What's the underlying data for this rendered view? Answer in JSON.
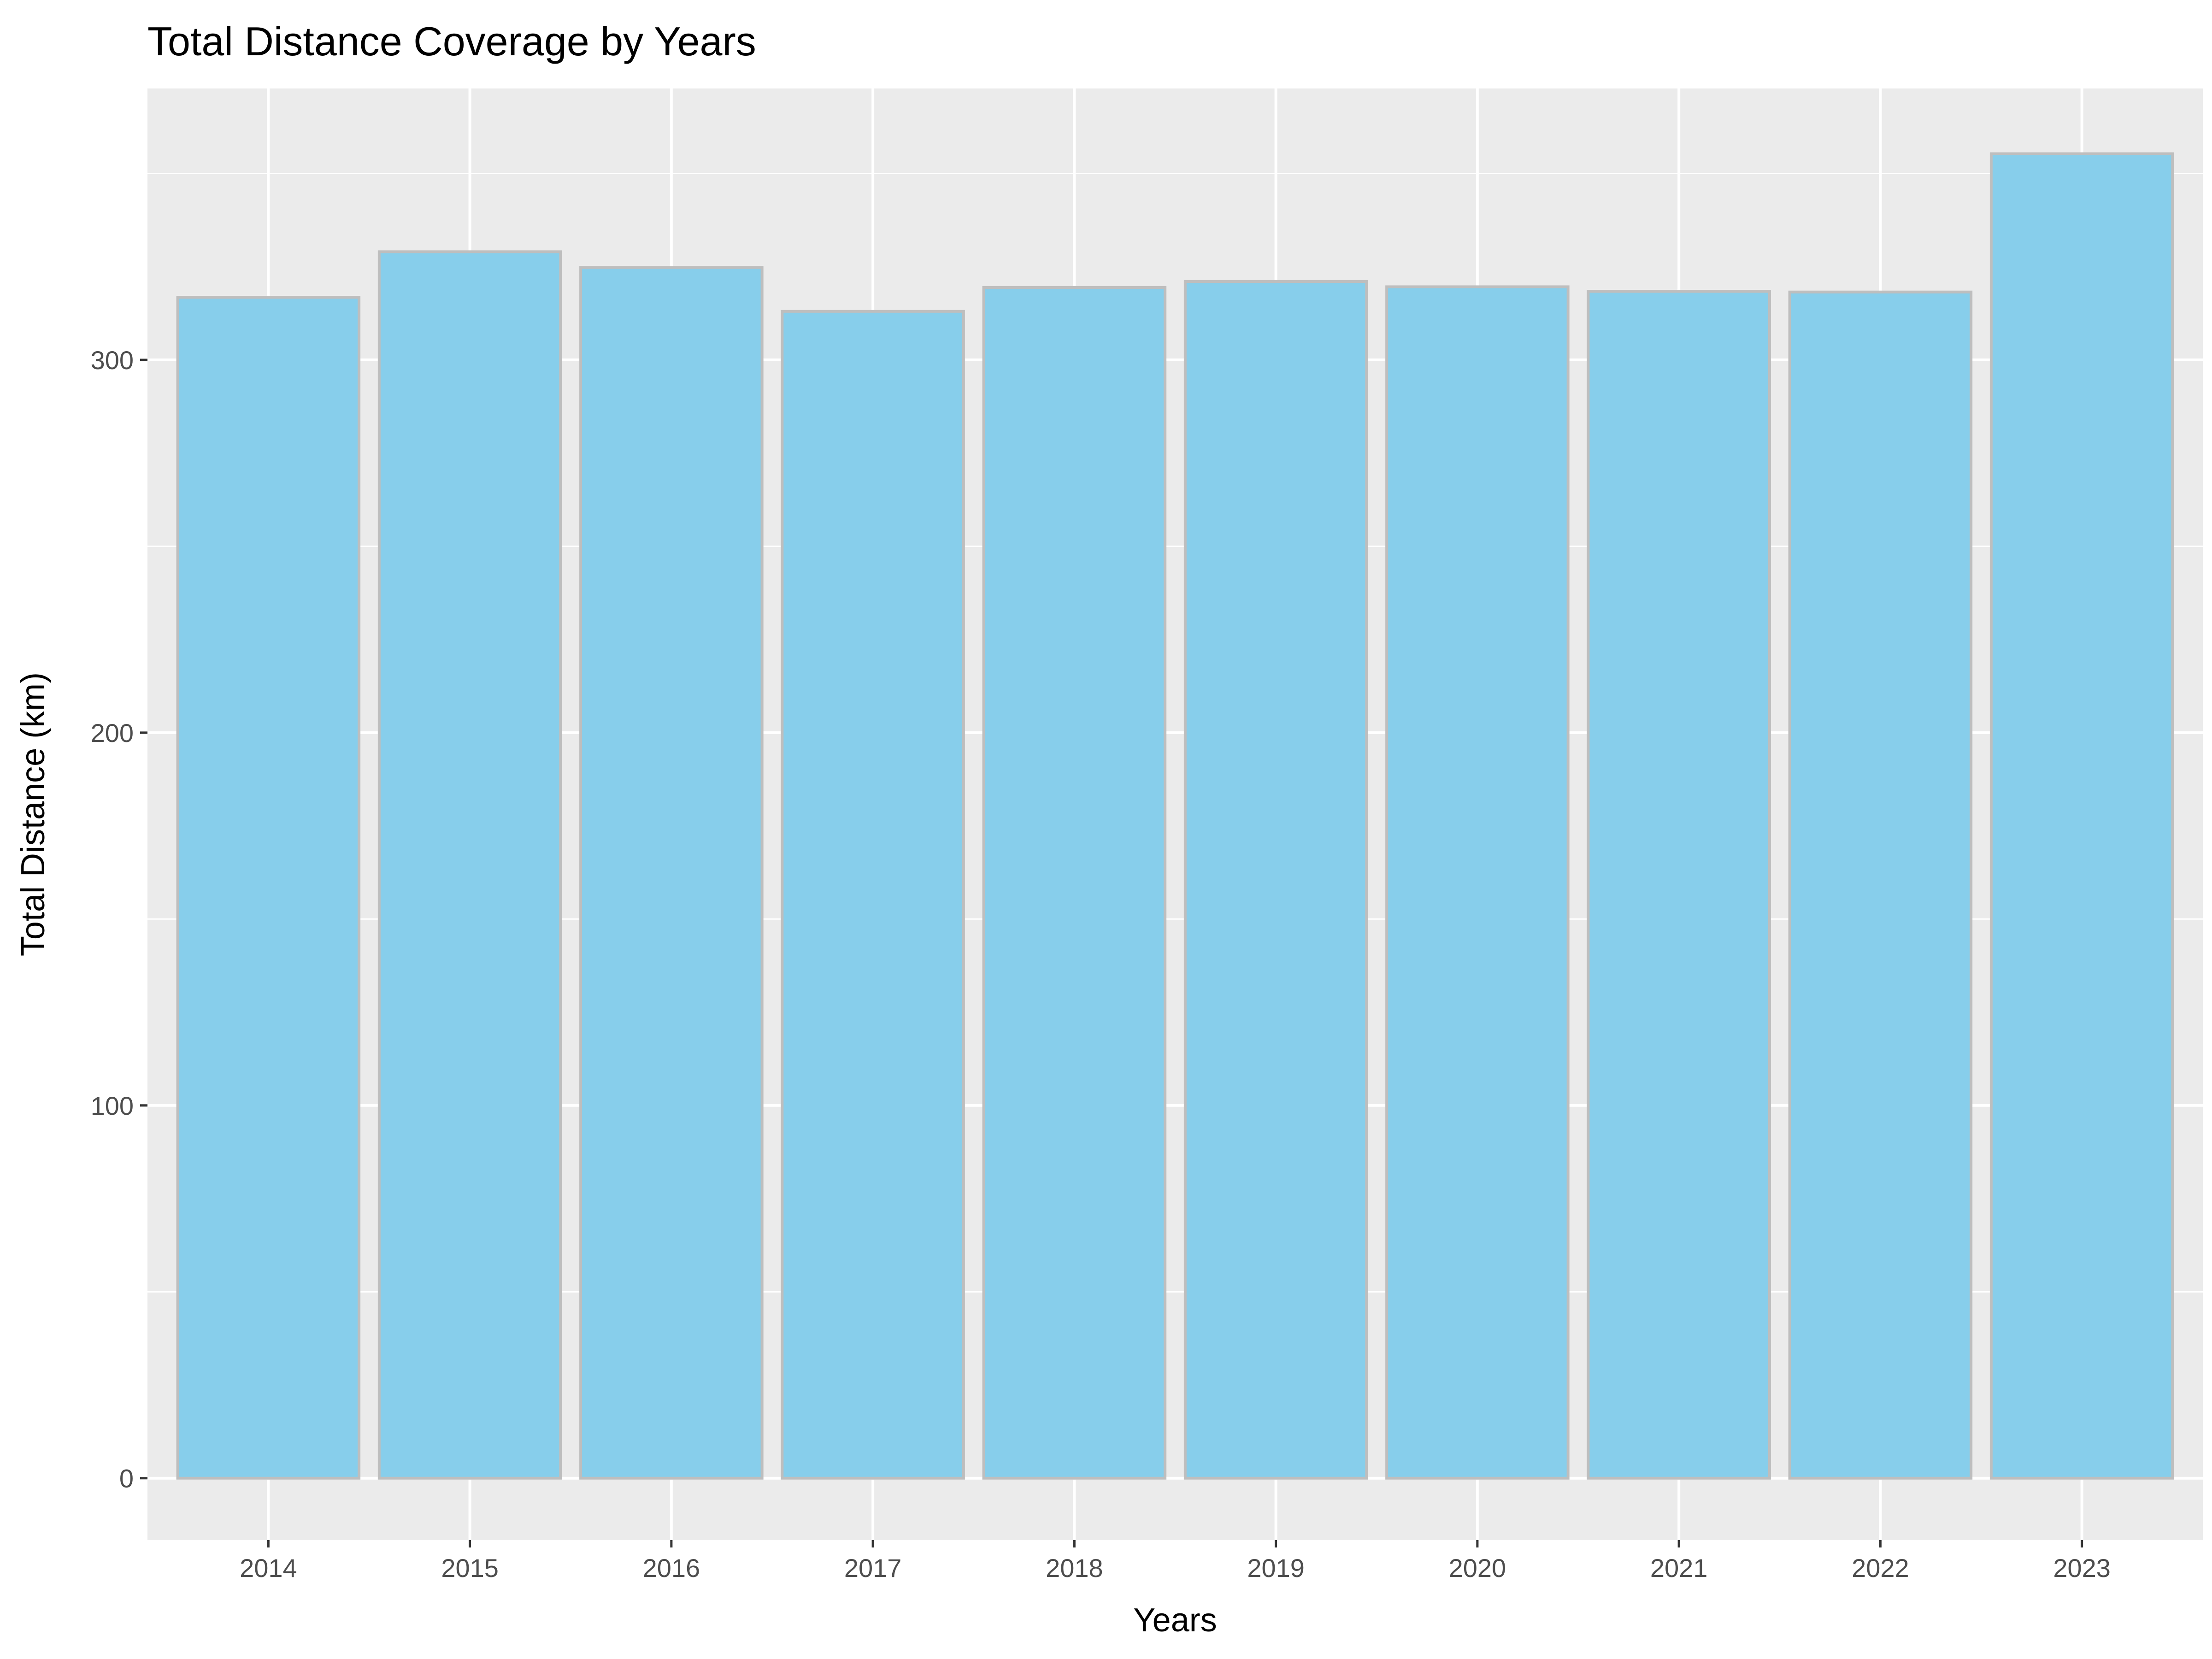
{
  "chart_data": {
    "type": "bar",
    "title": "Total Distance Coverage by Years",
    "xlabel": "Years",
    "ylabel": "Total Distance (km)",
    "categories": [
      "2014",
      "2015",
      "2016",
      "2017",
      "2018",
      "2019",
      "2020",
      "2021",
      "2022",
      "2023"
    ],
    "values": [
      316.8,
      329.0,
      324.8,
      313.0,
      319.4,
      321.0,
      319.6,
      318.4,
      318.2,
      355.3
    ],
    "ylim": [
      -16.6,
      372.8
    ],
    "yticks": [
      0,
      100,
      200,
      300
    ],
    "ytick_labels": [
      "0",
      "100",
      "200",
      "300"
    ],
    "grid": true,
    "legend": "none",
    "colors": {
      "panel_background": "#ebebeb",
      "grid": "#ffffff",
      "bar_fill": "#87ceeb",
      "bar_outline": "#bebebe",
      "tick_text": "#4d4d4d",
      "tick_mark": "#333333"
    }
  }
}
